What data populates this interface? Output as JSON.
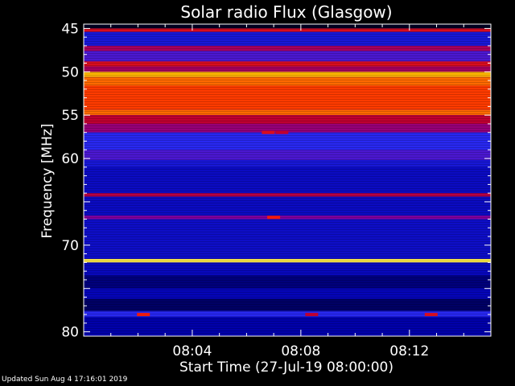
{
  "chart_data": {
    "type": "heatmap",
    "title": "Solar radio Flux (Glasgow)",
    "xlabel": "Start Time (27-Jul-19 08:00:00)",
    "ylabel": "Frequency [MHz]",
    "x_ticks": [
      "08:04",
      "08:08",
      "08:12"
    ],
    "x_tick_minutes": [
      4,
      8,
      12
    ],
    "x_range_minutes": [
      0,
      15
    ],
    "y_ticks": [
      45,
      50,
      55,
      60,
      65,
      70,
      75,
      80
    ],
    "y_tick_labels": [
      "45",
      "50",
      "55",
      "60",
      "",
      "70",
      "",
      "80"
    ],
    "y_range": [
      44.5,
      80.5
    ],
    "y_reversed": true,
    "colormap": [
      "#000020",
      "#0000b0",
      "#2828f0",
      "#8000a0",
      "#c00030",
      "#ff2000",
      "#ff8000",
      "#ffe000",
      "#ffffc0"
    ],
    "bands": [
      {
        "from": 44.5,
        "to": 45.0,
        "level": 0.0
      },
      {
        "from": 45.0,
        "to": 45.4,
        "level": 0.55
      },
      {
        "from": 45.4,
        "to": 47.0,
        "level": 0.2
      },
      {
        "from": 47.0,
        "to": 47.6,
        "level": 0.45
      },
      {
        "from": 47.6,
        "to": 48.8,
        "level": 0.3
      },
      {
        "from": 48.8,
        "to": 49.4,
        "level": 0.55
      },
      {
        "from": 49.4,
        "to": 50.0,
        "level": 0.45
      },
      {
        "from": 50.0,
        "to": 50.6,
        "level": 0.82
      },
      {
        "from": 50.6,
        "to": 51.6,
        "level": 0.72
      },
      {
        "from": 51.6,
        "to": 54.4,
        "level": 0.66
      },
      {
        "from": 54.4,
        "to": 55.0,
        "level": 0.72
      },
      {
        "from": 55.0,
        "to": 56.0,
        "level": 0.5
      },
      {
        "from": 56.0,
        "to": 57.0,
        "level": 0.42
      },
      {
        "from": 57.0,
        "to": 59.0,
        "level": 0.25
      },
      {
        "from": 59.0,
        "to": 60.2,
        "level": 0.3
      },
      {
        "from": 60.2,
        "to": 61.0,
        "level": 0.2
      },
      {
        "from": 61.0,
        "to": 64.0,
        "level": 0.16
      },
      {
        "from": 64.0,
        "to": 64.4,
        "level": 0.48
      },
      {
        "from": 64.4,
        "to": 66.6,
        "level": 0.16
      },
      {
        "from": 66.6,
        "to": 67.0,
        "level": 0.38
      },
      {
        "from": 67.0,
        "to": 71.6,
        "level": 0.17
      },
      {
        "from": 71.6,
        "to": 72.0,
        "level": 0.92
      },
      {
        "from": 72.0,
        "to": 73.5,
        "level": 0.15
      },
      {
        "from": 73.5,
        "to": 75.0,
        "level": 0.08
      },
      {
        "from": 75.0,
        "to": 76.2,
        "level": 0.14
      },
      {
        "from": 76.2,
        "to": 77.6,
        "level": 0.06
      },
      {
        "from": 77.6,
        "to": 78.3,
        "level": 0.25
      },
      {
        "from": 78.3,
        "to": 80.5,
        "level": 0.12
      }
    ],
    "bursts": [
      {
        "freq": 57.0,
        "minute": 6.8,
        "level": 0.55
      },
      {
        "freq": 57.0,
        "minute": 7.3,
        "level": 0.5
      },
      {
        "freq": 66.8,
        "minute": 7.0,
        "level": 0.6
      },
      {
        "freq": 78.0,
        "minute": 2.2,
        "level": 0.6
      },
      {
        "freq": 78.0,
        "minute": 8.4,
        "level": 0.5
      },
      {
        "freq": 78.0,
        "minute": 12.8,
        "level": 0.55
      }
    ]
  },
  "footer": "Updated Sun Aug  4 17:16:01 2019"
}
